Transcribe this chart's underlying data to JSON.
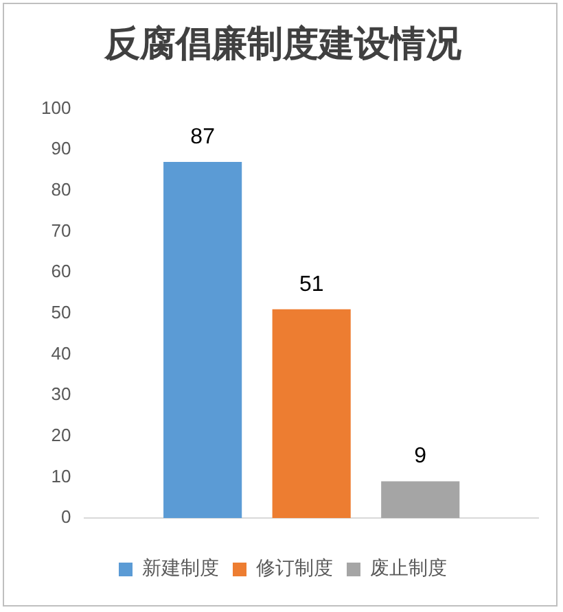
{
  "chart_data": {
    "type": "bar",
    "title": "反腐倡廉制度建设情况",
    "categories": [
      null
    ],
    "series": [
      {
        "name": "新建制度",
        "color": "#5b9bd5",
        "values": [
          87
        ]
      },
      {
        "name": "修订制度",
        "color": "#ed7d31",
        "values": [
          51
        ]
      },
      {
        "name": "废止制度",
        "color": "#a5a5a5",
        "values": [
          9
        ]
      }
    ],
    "ylim": [
      0,
      100
    ],
    "yticks": [
      0,
      10,
      20,
      30,
      40,
      50,
      60,
      70,
      80,
      90,
      100
    ],
    "grid": false,
    "legend": "bottom",
    "data_labels": true
  }
}
